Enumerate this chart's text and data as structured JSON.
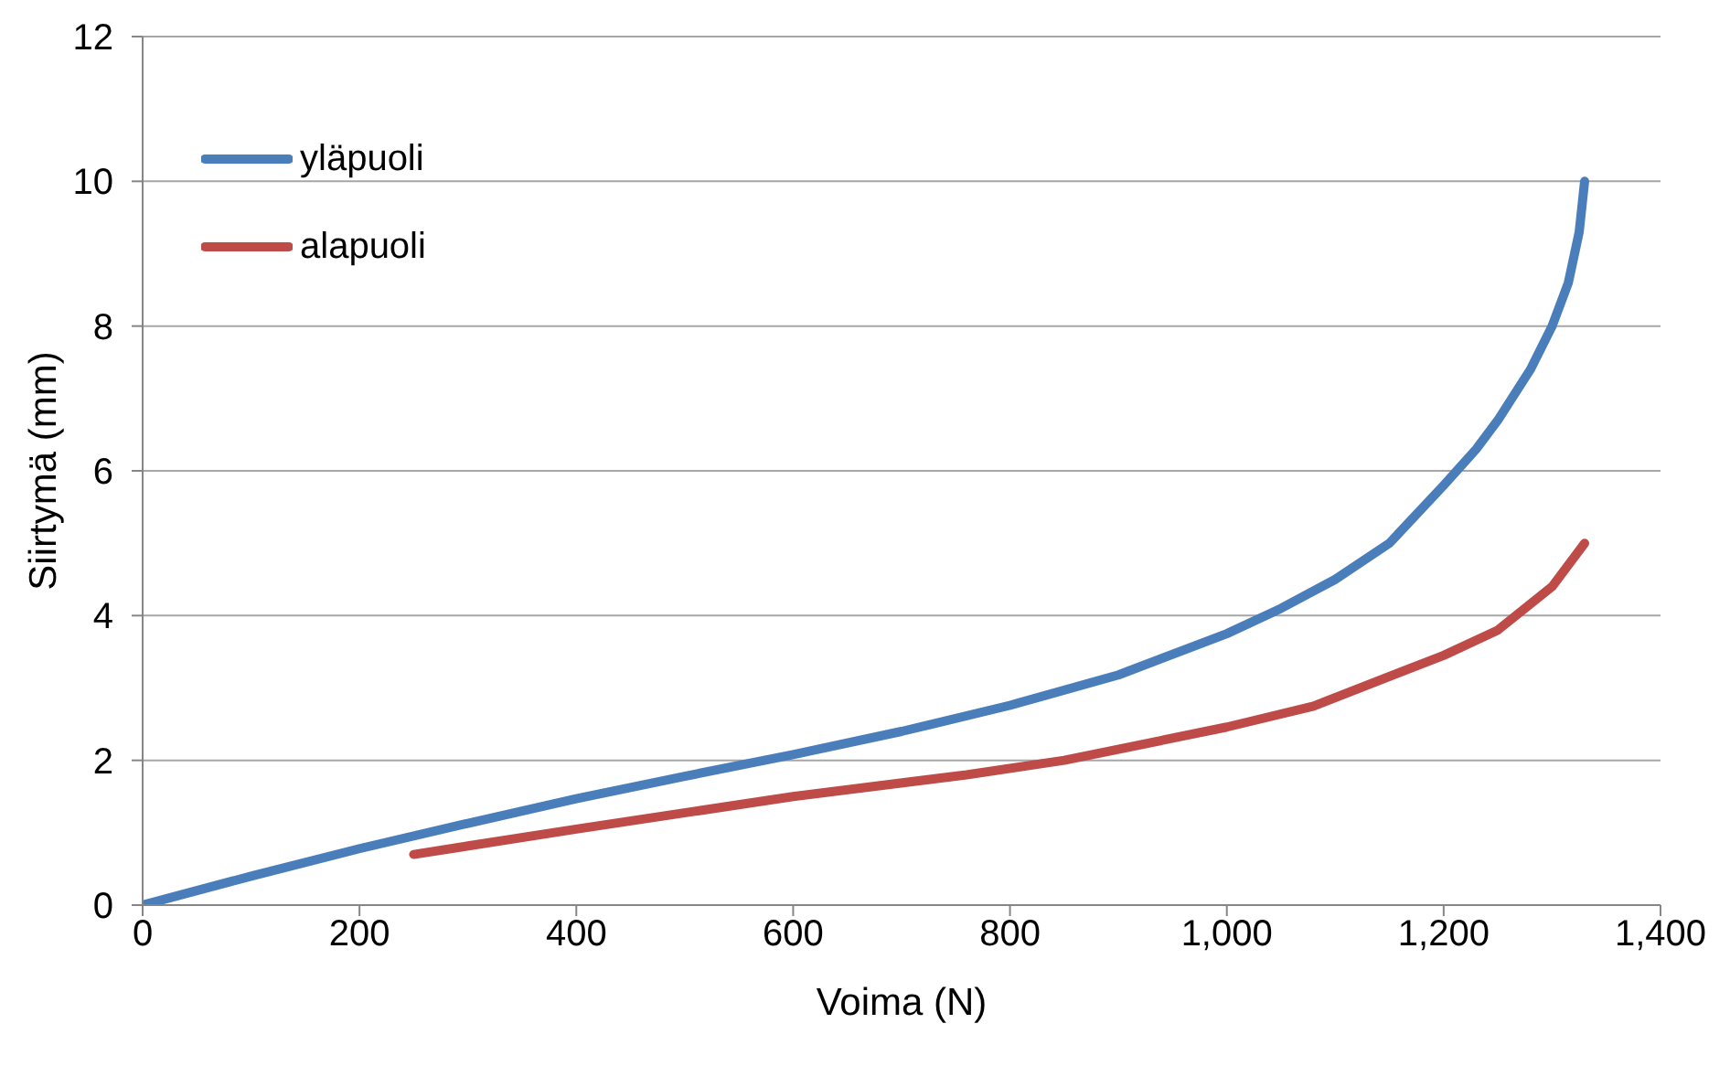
{
  "chart_data": {
    "type": "line",
    "xlabel": "Voima (N)",
    "ylabel": "Siirtymä (mm)",
    "xlim": [
      0,
      1400
    ],
    "xticks": [
      {
        "value": 0,
        "label": "0"
      },
      {
        "value": 200,
        "label": "200"
      },
      {
        "value": 400,
        "label": "400"
      },
      {
        "value": 600,
        "label": "600"
      },
      {
        "value": 800,
        "label": "800"
      },
      {
        "value": 1000,
        "label": "1,000"
      },
      {
        "value": 1200,
        "label": "1,200"
      },
      {
        "value": 1400,
        "label": "1,400"
      }
    ],
    "ylim": [
      0,
      12
    ],
    "yticks": [
      0,
      2,
      4,
      6,
      8,
      10,
      12
    ],
    "grid": "y",
    "legend": "top left",
    "marker": "none",
    "line_style": "solid",
    "series": [
      {
        "name": "yläpuoli",
        "color": "#4a7ebb",
        "x": [
          0,
          100,
          200,
          300,
          400,
          500,
          600,
          700,
          800,
          900,
          1000,
          1050,
          1100,
          1150,
          1200,
          1230,
          1250,
          1280,
          1300,
          1315,
          1325,
          1330
        ],
        "values": [
          0,
          0.4,
          0.78,
          1.13,
          1.47,
          1.78,
          2.08,
          2.4,
          2.76,
          3.18,
          3.75,
          4.1,
          4.5,
          5.0,
          5.8,
          6.3,
          6.7,
          7.4,
          8.0,
          8.6,
          9.3,
          10.0
        ]
      },
      {
        "name": "alapuoli",
        "color": "#be4b48",
        "x": [
          250,
          400,
          600,
          760,
          850,
          1000,
          1080,
          1200,
          1250,
          1300,
          1330
        ],
        "values": [
          0.7,
          1.05,
          1.5,
          1.8,
          2.0,
          2.46,
          2.75,
          3.45,
          3.8,
          4.4,
          5.0
        ]
      }
    ]
  }
}
